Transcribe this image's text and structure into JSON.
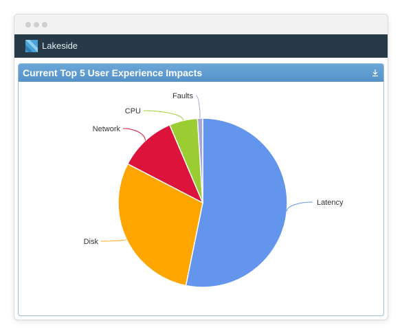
{
  "app": {
    "name": "Lakeside"
  },
  "panel": {
    "title": "Current Top 5 User Experience Impacts"
  },
  "colors": {
    "appbar": "#263a47",
    "panel_header": "#5b99cf",
    "Latency": "#6495ed",
    "Disk": "#ffa500",
    "Network": "#dc143c",
    "CPU": "#9acd32",
    "Faults": "#a9a6d6"
  },
  "chart_data": {
    "type": "pie",
    "title": "",
    "slices": [
      {
        "label": "Latency",
        "value": 53.2,
        "color": "#6495ed"
      },
      {
        "label": "Disk",
        "value": 29.4,
        "color": "#ffa500"
      },
      {
        "label": "Network",
        "value": 11.0,
        "color": "#dc143c"
      },
      {
        "label": "CPU",
        "value": 5.4,
        "color": "#9acd32"
      },
      {
        "label": "Faults",
        "value": 1.0,
        "color": "#a9a6d6"
      }
    ]
  }
}
